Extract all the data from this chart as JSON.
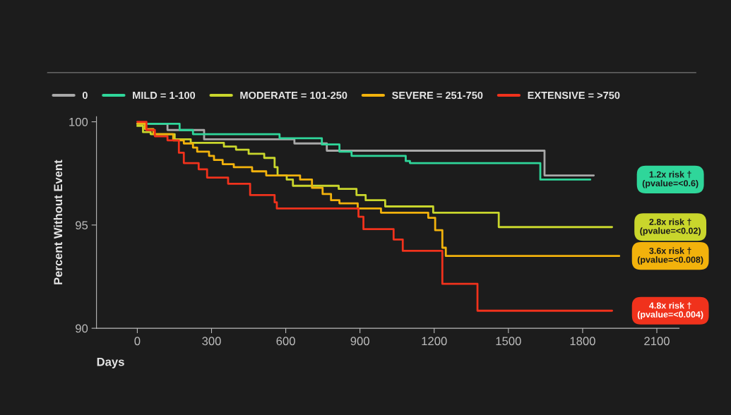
{
  "chart_data": {
    "type": "step",
    "xlabel": "Days",
    "ylabel": "Percent Without Event",
    "xlim": [
      -165,
      2190
    ],
    "ylim": [
      90,
      100.25
    ],
    "xticks": [
      0,
      300,
      600,
      900,
      1200,
      1500,
      1800,
      2100
    ],
    "yticks": [
      90,
      95,
      100
    ],
    "grid": false,
    "legend": "top left",
    "marker": "none",
    "line_style": "solid",
    "series": [
      {
        "name": "0",
        "color": "#a8a8a8",
        "x": [
          0,
          122,
          270,
          635,
          766,
          1646,
          1845
        ],
        "values": [
          99.9,
          99.6,
          99.15,
          98.95,
          98.6,
          97.4,
          97.4
        ]
      },
      {
        "name": "MILD = 1-100",
        "color": "#2fd69a",
        "x": [
          0,
          171,
          225,
          575,
          746,
          817,
          866,
          1085,
          1102,
          1629,
          1831
        ],
        "values": [
          99.9,
          99.6,
          99.4,
          99.2,
          98.9,
          98.55,
          98.35,
          98.1,
          98.0,
          97.2,
          97.2
        ]
      },
      {
        "name": "MODERATE = 101-250",
        "color": "#c9d62c",
        "x": [
          0,
          23,
          54,
          151,
          216,
          350,
          399,
          450,
          513,
          555,
          567,
          604,
          629,
          814,
          886,
          923,
          1002,
          1196,
          1461,
          1919
        ],
        "values": [
          99.8,
          99.5,
          99.4,
          99.15,
          98.98,
          98.8,
          98.65,
          98.45,
          98.25,
          97.8,
          97.4,
          97.2,
          96.9,
          96.75,
          96.45,
          96.2,
          95.9,
          95.6,
          94.9,
          94.9
        ]
      },
      {
        "name": "SEVERE = 251-750",
        "color": "#f2b20c",
        "x": [
          0,
          31,
          65,
          145,
          188,
          225,
          242,
          290,
          310,
          345,
          390,
          464,
          521,
          658,
          706,
          749,
          783,
          817,
          891,
          985,
          1176,
          1204,
          1233,
          1247,
          1948
        ],
        "values": [
          99.9,
          99.65,
          99.4,
          99.1,
          98.95,
          98.75,
          98.55,
          98.35,
          98.15,
          97.95,
          97.8,
          97.6,
          97.4,
          97.2,
          96.8,
          96.5,
          96.2,
          96.05,
          95.8,
          95.6,
          95.35,
          94.75,
          93.9,
          93.5,
          93.5
        ]
      },
      {
        "name": "EXTENSIVE = >750",
        "color": "#f0321c",
        "x": [
          0,
          37,
          71,
          122,
          168,
          188,
          248,
          282,
          367,
          456,
          555,
          564,
          894,
          914,
          1036,
          1073,
          1233,
          1375,
          1919
        ],
        "values": [
          100,
          99.6,
          99.3,
          99.1,
          98.5,
          98.0,
          97.7,
          97.3,
          97.0,
          96.45,
          96.1,
          95.8,
          95.4,
          94.8,
          94.3,
          93.75,
          92.15,
          90.85,
          90.85
        ]
      }
    ],
    "annotations": [
      "1.2x risk †\n(pvalue=<0.6)",
      "2.8x risk †\n(pvalue=<0.02)",
      "3.6x risk †\n(pvalue=<0.008)",
      "4.8x risk †\n(pvalue=<0.004)"
    ]
  }
}
